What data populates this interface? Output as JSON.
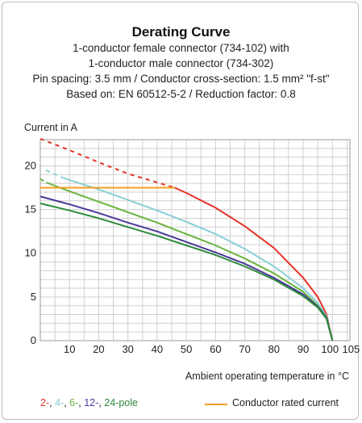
{
  "header": {
    "title": "Derating Curve",
    "lines": [
      "1-conductor female connector (734-102) with",
      "1-conductor male connector (734-302)",
      "Pin spacing: 3.5 mm / Conductor cross-section: 1.5 mm² \"f-st\"",
      "Based on: EN 60512-5-2 / Reduction factor: 0.8"
    ]
  },
  "legend": {
    "poles": [
      {
        "label": "2-",
        "color": "#e53228"
      },
      {
        "label": "4-",
        "color": "#88cfd6"
      },
      {
        "label": "6-",
        "color": "#6ab43e"
      },
      {
        "label": "12-",
        "color": "#4b3a9a"
      },
      {
        "label": "24-pole",
        "color": "#2f8a3d"
      }
    ],
    "separator": ", ",
    "rated_label": "Conductor rated current",
    "rated_color": "#f0a020"
  },
  "chart_data": {
    "type": "line",
    "ylabel": "Current in A",
    "xlabel": "Ambient operating temperature in °C",
    "xlim": [
      0,
      106
    ],
    "ylim": [
      0,
      23
    ],
    "xticks": [
      10,
      20,
      30,
      40,
      50,
      60,
      70,
      80,
      90,
      100,
      105
    ],
    "yticks": [
      0,
      5,
      10,
      15,
      20
    ],
    "grid": true,
    "series": [
      {
        "name": "2-pole",
        "color": "#e53228",
        "dashed": [
          [
            0,
            23.1
          ],
          [
            10,
            21.8
          ],
          [
            20,
            20.4
          ],
          [
            30,
            19.1
          ],
          [
            40,
            18.1
          ],
          [
            46,
            17.5
          ]
        ],
        "values": [
          [
            46,
            17.5
          ],
          [
            50,
            16.9
          ],
          [
            60,
            15.2
          ],
          [
            70,
            13.1
          ],
          [
            80,
            10.6
          ],
          [
            90,
            7.2
          ],
          [
            95,
            5.0
          ],
          [
            98,
            3.0
          ],
          [
            100,
            0.0
          ]
        ]
      },
      {
        "name": "4-pole",
        "color": "#88cfd6",
        "dashed": [
          [
            2,
            19.5
          ],
          [
            8,
            18.6
          ]
        ],
        "values": [
          [
            8,
            18.6
          ],
          [
            20,
            17.3
          ],
          [
            30,
            16.1
          ],
          [
            40,
            14.9
          ],
          [
            50,
            13.6
          ],
          [
            60,
            12.2
          ],
          [
            70,
            10.5
          ],
          [
            80,
            8.5
          ],
          [
            90,
            6.0
          ],
          [
            95,
            4.3
          ],
          [
            98,
            2.8
          ],
          [
            100,
            0.0
          ]
        ]
      },
      {
        "name": "6-pole",
        "color": "#6ab43e",
        "dashed": [
          [
            0,
            18.5
          ],
          [
            2,
            18.1
          ]
        ],
        "values": [
          [
            2,
            18.1
          ],
          [
            10,
            17.1
          ],
          [
            20,
            15.9
          ],
          [
            30,
            14.7
          ],
          [
            40,
            13.5
          ],
          [
            50,
            12.2
          ],
          [
            60,
            10.9
          ],
          [
            70,
            9.4
          ],
          [
            80,
            7.7
          ],
          [
            90,
            5.6
          ],
          [
            95,
            4.0
          ],
          [
            98,
            2.7
          ],
          [
            100,
            0.0
          ]
        ]
      },
      {
        "name": "12-pole",
        "color": "#4b3a9a",
        "values": [
          [
            0,
            16.5
          ],
          [
            10,
            15.6
          ],
          [
            20,
            14.6
          ],
          [
            30,
            13.5
          ],
          [
            40,
            12.5
          ],
          [
            50,
            11.3
          ],
          [
            60,
            10.1
          ],
          [
            70,
            8.8
          ],
          [
            80,
            7.2
          ],
          [
            90,
            5.3
          ],
          [
            95,
            3.9
          ],
          [
            98,
            2.6
          ],
          [
            100,
            0.0
          ]
        ]
      },
      {
        "name": "24-pole",
        "color": "#2f8a3d",
        "values": [
          [
            0,
            15.7
          ],
          [
            10,
            14.9
          ],
          [
            20,
            14.0
          ],
          [
            30,
            13.0
          ],
          [
            40,
            12.0
          ],
          [
            50,
            10.9
          ],
          [
            60,
            9.8
          ],
          [
            70,
            8.5
          ],
          [
            80,
            7.0
          ],
          [
            90,
            5.1
          ],
          [
            95,
            3.8
          ],
          [
            98,
            2.5
          ],
          [
            100,
            0.0
          ]
        ]
      },
      {
        "name": "Conductor rated current",
        "color": "#f0a020",
        "values": [
          [
            0,
            17.5
          ],
          [
            46,
            17.5
          ]
        ]
      }
    ]
  }
}
